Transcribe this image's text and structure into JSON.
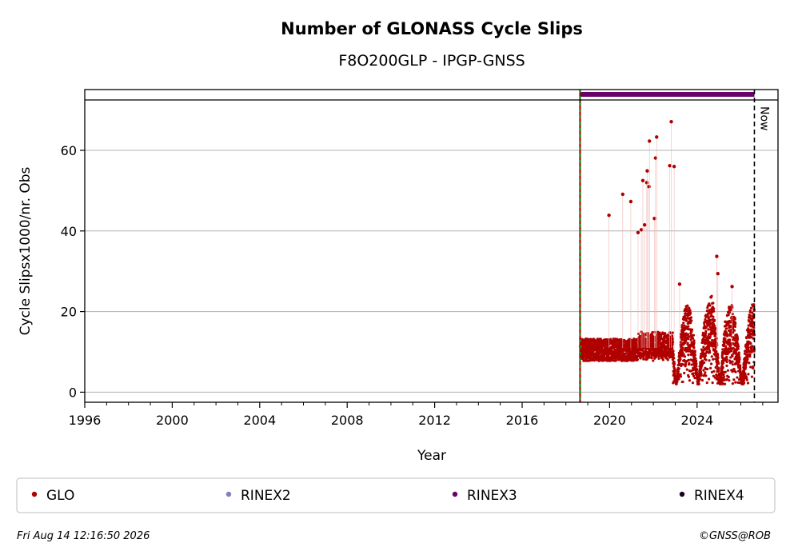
{
  "chart_data": {
    "type": "scatter",
    "title": "Number of GLONASS Cycle Slips",
    "subtitle": "F8O200GLP - IPGP-GNSS",
    "xlabel": "Year",
    "ylabel": "Cycle Slipsx1000/nr. Obs",
    "xlim": [
      1996,
      2027.7
    ],
    "ylim": [
      -2.5,
      72.5
    ],
    "x_ticks": [
      "1996",
      "2000",
      "2004",
      "2008",
      "2012",
      "2016",
      "2020",
      "2024"
    ],
    "y_ticks": [
      "0",
      "20",
      "40",
      "60"
    ],
    "grid": "horizontal",
    "now_label": "Now",
    "now_x": 2026.62,
    "station_start_x": 2018.65,
    "rinex3_bar": {
      "x_start": 2018.65,
      "x_end": 2026.62,
      "color": "#6a006a"
    },
    "series": [
      {
        "name": "GLO",
        "color": "#b00000",
        "marker": "dot"
      },
      {
        "name": "RINEX2",
        "color": "#8080c0",
        "marker": "dot"
      },
      {
        "name": "RINEX3",
        "color": "#6a006a",
        "marker": "dot"
      },
      {
        "name": "RINEX4",
        "color": "#1a0022",
        "marker": "dot"
      }
    ],
    "outliers": [
      [
        2019.97,
        43.9
      ],
      [
        2020.6,
        49.1
      ],
      [
        2020.97,
        47.3
      ],
      [
        2021.3,
        39.6
      ],
      [
        2021.45,
        40.3
      ],
      [
        2021.52,
        52.5
      ],
      [
        2021.6,
        41.5
      ],
      [
        2021.7,
        52.0
      ],
      [
        2021.72,
        54.9
      ],
      [
        2021.8,
        51.0
      ],
      [
        2021.82,
        62.3
      ],
      [
        2022.05,
        43.1
      ],
      [
        2022.1,
        58.1
      ],
      [
        2022.15,
        63.3
      ],
      [
        2022.75,
        56.2
      ],
      [
        2022.82,
        67.1
      ],
      [
        2022.95,
        56.0
      ],
      [
        2023.2,
        26.8
      ],
      [
        2024.9,
        33.7
      ],
      [
        2024.95,
        29.4
      ],
      [
        2025.6,
        26.2
      ]
    ]
  },
  "legend": {
    "items": [
      {
        "label": "GLO",
        "color": "#b00000"
      },
      {
        "label": "RINEX2",
        "color": "#8080c0"
      },
      {
        "label": "RINEX3",
        "color": "#6a006a"
      },
      {
        "label": "RINEX4",
        "color": "#1a0022"
      }
    ]
  },
  "footer": {
    "timestamp": "Fri Aug 14 12:16:50 2026",
    "copyright": "©GNSS@ROB"
  }
}
